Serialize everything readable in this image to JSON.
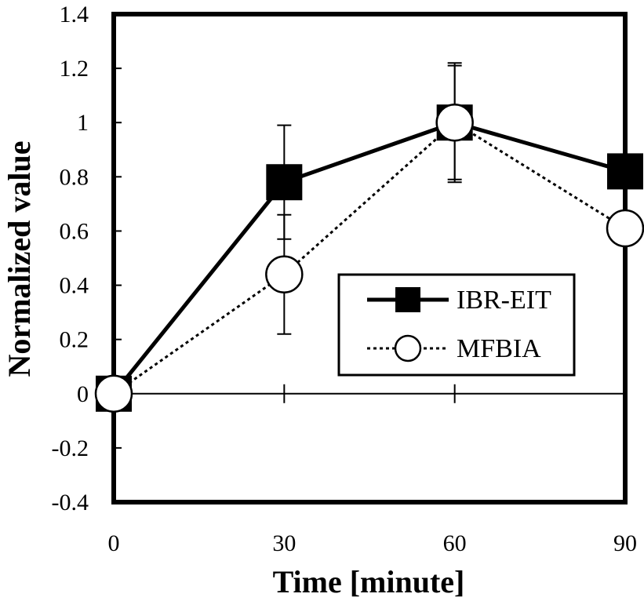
{
  "chart_data": {
    "type": "line",
    "xlabel": "Time [minute]",
    "ylabel": "Normalized value",
    "x": [
      0,
      30,
      60,
      90
    ],
    "xlim": [
      0,
      90
    ],
    "ylim": [
      -0.4,
      1.4
    ],
    "xticks": [
      "0",
      "30",
      "60",
      "90"
    ],
    "yticks": [
      "-0.4",
      "-0.2",
      "0",
      "0.2",
      "0.4",
      "0.6",
      "0.8",
      "1",
      "1.2",
      "1.4"
    ],
    "grid": false,
    "legend": "center-right",
    "series": [
      {
        "name": "IBR-EIT",
        "values": [
          0,
          0.78,
          1.0,
          0.82
        ],
        "error": [
          0,
          0.21,
          0.22,
          0
        ],
        "marker": "filled-square",
        "line": "solid",
        "color": "#000000"
      },
      {
        "name": "MFBIA",
        "values": [
          0,
          0.44,
          1.0,
          0.61
        ],
        "error": [
          0,
          0.22,
          0.21,
          0
        ],
        "marker": "open-circle",
        "line": "dotted",
        "color": "#000000"
      }
    ]
  }
}
